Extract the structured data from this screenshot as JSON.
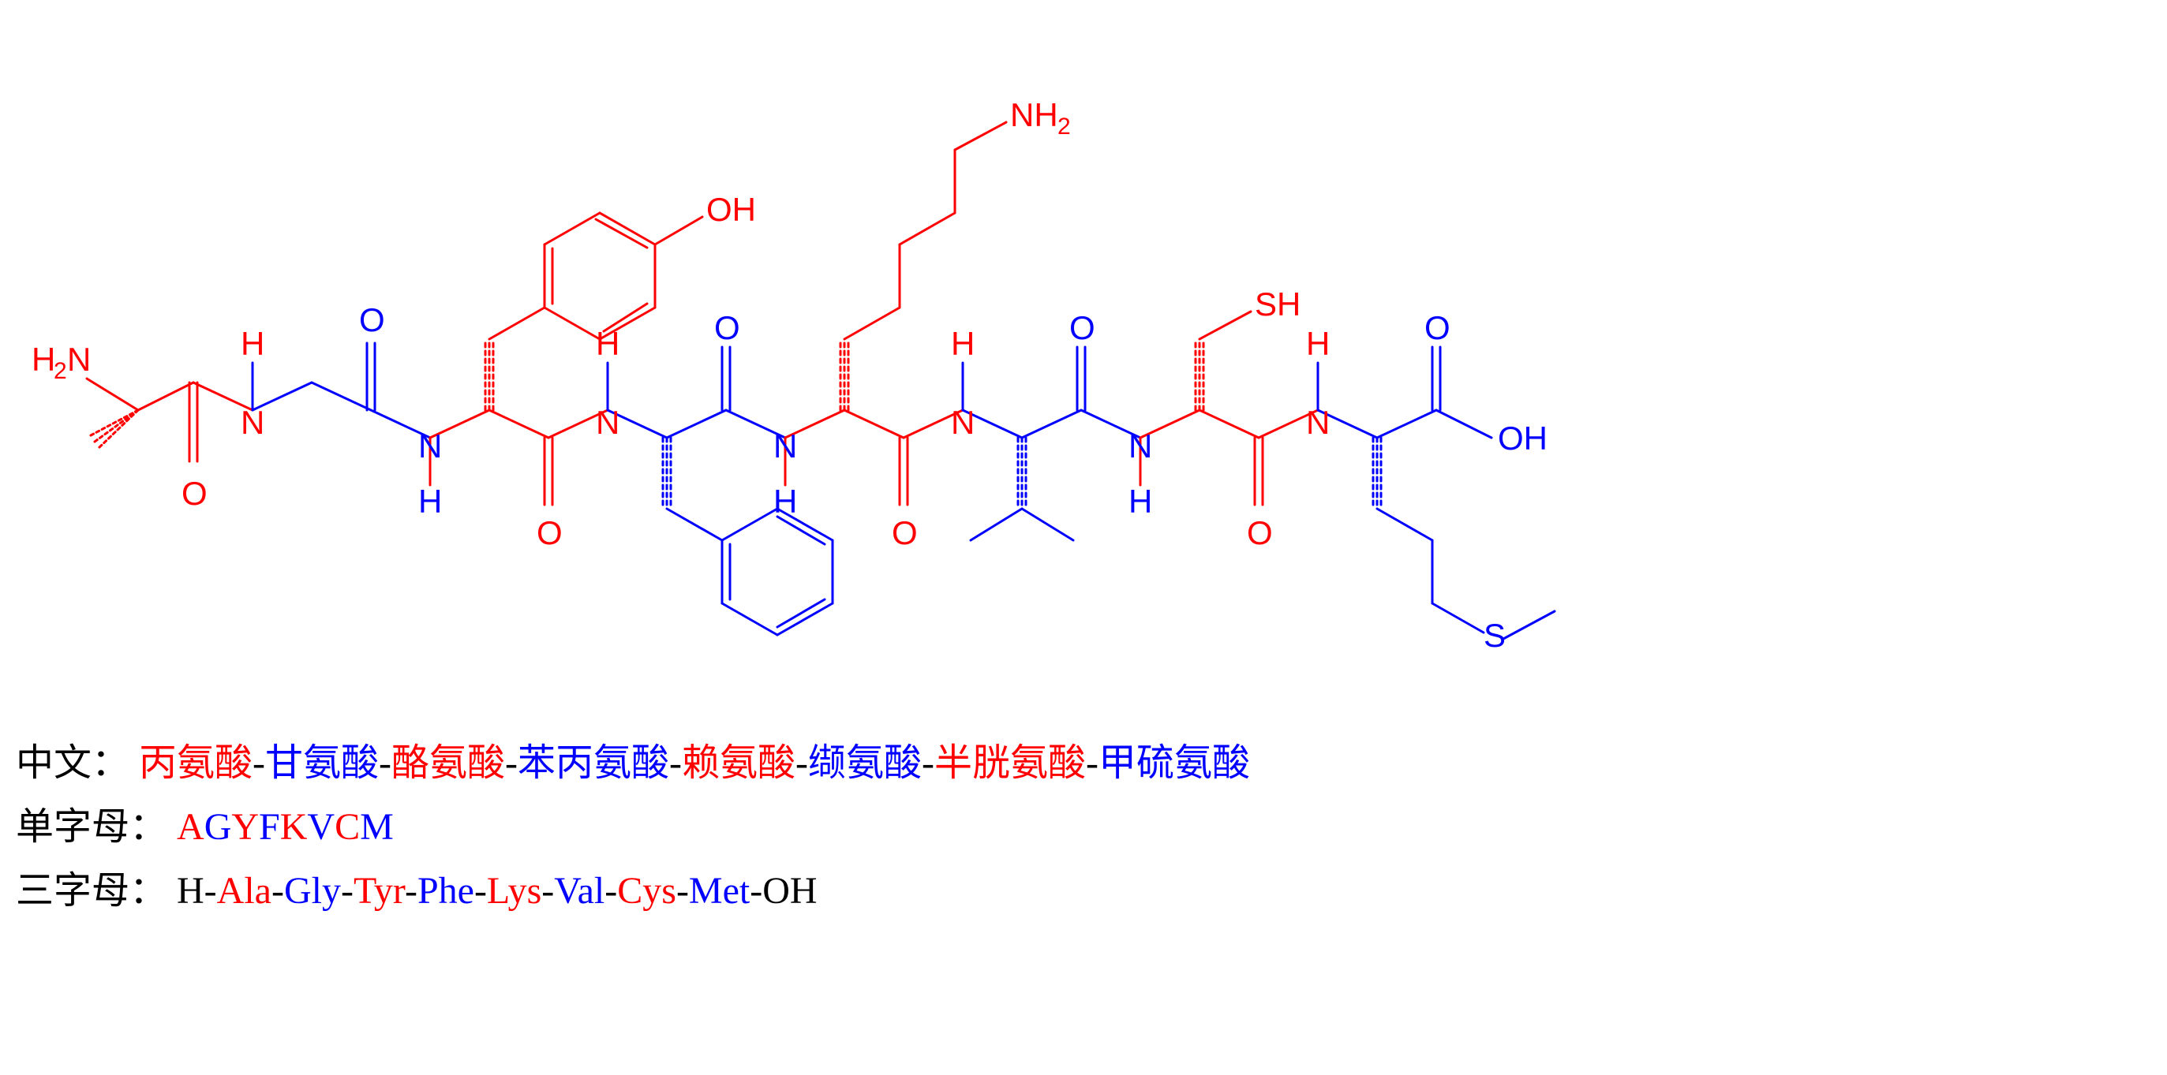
{
  "colors": {
    "red": "#ff0000",
    "blue": "#0000ff",
    "black": "#000000"
  },
  "structure": {
    "bond_width": 3,
    "atom_font_size": 42,
    "sub_font_size": 30,
    "residues": [
      {
        "name": "Ala",
        "letter": "A",
        "color": "red",
        "chinese": "丙氨酸"
      },
      {
        "name": "Gly",
        "letter": "G",
        "color": "blue",
        "chinese": "甘氨酸"
      },
      {
        "name": "Tyr",
        "letter": "Y",
        "color": "red",
        "chinese": "酪氨酸"
      },
      {
        "name": "Phe",
        "letter": "F",
        "color": "blue",
        "chinese": "苯丙氨酸"
      },
      {
        "name": "Lys",
        "letter": "K",
        "color": "red",
        "chinese": "赖氨酸"
      },
      {
        "name": "Val",
        "letter": "V",
        "color": "blue",
        "chinese": "缬氨酸"
      },
      {
        "name": "Cys",
        "letter": "C",
        "color": "red",
        "chinese": "半胱氨酸"
      },
      {
        "name": "Met",
        "letter": "M",
        "color": "blue",
        "chinese": "甲硫氨酸"
      }
    ]
  },
  "labels": {
    "chinese_prefix": "中文：",
    "single_prefix": "单字母：",
    "three_prefix": "三字母：",
    "three_start": "H",
    "three_end": "OH",
    "separator": "-"
  },
  "atoms": {
    "NH2": "NH",
    "NH2_sub": "2",
    "H2N": "H",
    "H2N_sub": "2",
    "H2N_N": "N",
    "O": "O",
    "OH": "OH",
    "NH": "N",
    "NH_H": "H",
    "H": "H",
    "N": "N",
    "SH": "SH",
    "S": "S"
  }
}
